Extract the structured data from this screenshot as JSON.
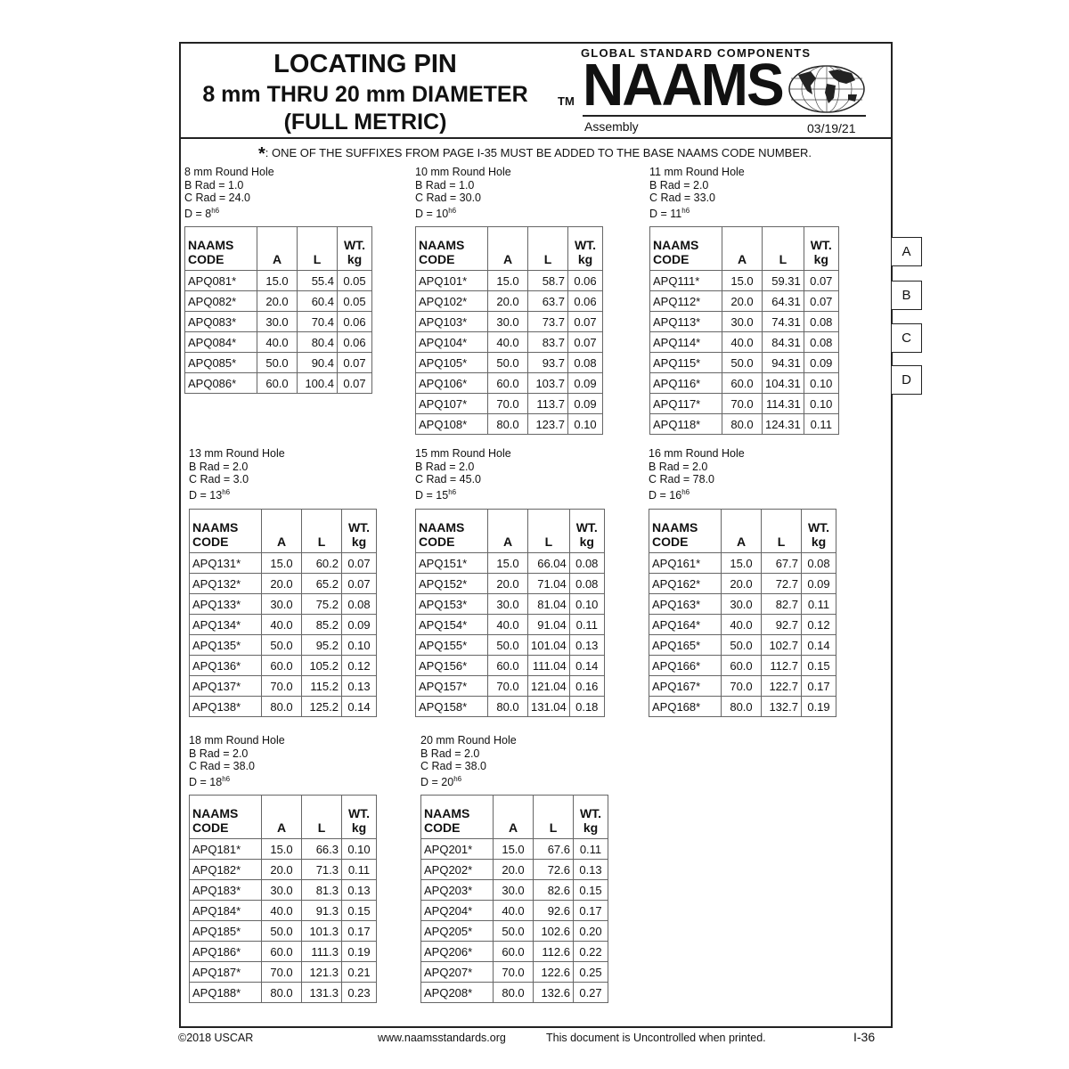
{
  "header": {
    "title_line1": "LOCATING PIN",
    "title_line2": "8 mm THRU 20 mm DIAMETER",
    "title_line3": "(FULL METRIC)",
    "logo_tagline": "GLOBAL STANDARD COMPONENTS",
    "trademark": "TM",
    "logo_text": "NAAMS",
    "logo_icon": "globe-icon",
    "section": "Assembly",
    "date": "03/19/21"
  },
  "note": {
    "symbol": "*",
    "text": ": ONE OF THE SUFFIXES FROM PAGE I-35 MUST BE ADDED TO THE BASE NAAMS CODE NUMBER."
  },
  "table_headers": {
    "code_line1": "NAAMS",
    "code_line2": "CODE",
    "a": "A",
    "l": "L",
    "wt_line1": "WT.",
    "wt_line2": "kg"
  },
  "groups": [
    {
      "title": "8 mm Round Hole",
      "b_rad": "B Rad = 1.0",
      "c_rad": "C Rad = 24.0",
      "d": "D = 8",
      "d_sup": "h6",
      "rows": [
        [
          "APQ081*",
          "15.0",
          "55.4",
          "0.05"
        ],
        [
          "APQ082*",
          "20.0",
          "60.4",
          "0.05"
        ],
        [
          "APQ083*",
          "30.0",
          "70.4",
          "0.06"
        ],
        [
          "APQ084*",
          "40.0",
          "80.4",
          "0.06"
        ],
        [
          "APQ085*",
          "50.0",
          "90.4",
          "0.07"
        ],
        [
          "APQ086*",
          "60.0",
          "100.4",
          "0.07"
        ]
      ]
    },
    {
      "title": "10 mm Round Hole",
      "b_rad": "B Rad = 1.0",
      "c_rad": "C Rad = 30.0",
      "d": "D = 10",
      "d_sup": "h6",
      "rows": [
        [
          "APQ101*",
          "15.0",
          "58.7",
          "0.06"
        ],
        [
          "APQ102*",
          "20.0",
          "63.7",
          "0.06"
        ],
        [
          "APQ103*",
          "30.0",
          "73.7",
          "0.07"
        ],
        [
          "APQ104*",
          "40.0",
          "83.7",
          "0.07"
        ],
        [
          "APQ105*",
          "50.0",
          "93.7",
          "0.08"
        ],
        [
          "APQ106*",
          "60.0",
          "103.7",
          "0.09"
        ],
        [
          "APQ107*",
          "70.0",
          "113.7",
          "0.09"
        ],
        [
          "APQ108*",
          "80.0",
          "123.7",
          "0.10"
        ]
      ]
    },
    {
      "title": "11 mm Round Hole",
      "b_rad": "B Rad = 2.0",
      "c_rad": "C Rad = 33.0",
      "d": "D = 11",
      "d_sup": "h6",
      "rows": [
        [
          "APQ111*",
          "15.0",
          "59.31",
          "0.07"
        ],
        [
          "APQ112*",
          "20.0",
          "64.31",
          "0.07"
        ],
        [
          "APQ113*",
          "30.0",
          "74.31",
          "0.08"
        ],
        [
          "APQ114*",
          "40.0",
          "84.31",
          "0.08"
        ],
        [
          "APQ115*",
          "50.0",
          "94.31",
          "0.09"
        ],
        [
          "APQ116*",
          "60.0",
          "104.31",
          "0.10"
        ],
        [
          "APQ117*",
          "70.0",
          "114.31",
          "0.10"
        ],
        [
          "APQ118*",
          "80.0",
          "124.31",
          "0.11"
        ]
      ]
    },
    {
      "title": "13 mm Round Hole",
      "b_rad": "B Rad = 2.0",
      "c_rad": "C Rad = 3.0",
      "d": "D = 13",
      "d_sup": "h6",
      "rows": [
        [
          "APQ131*",
          "15.0",
          "60.2",
          "0.07"
        ],
        [
          "APQ132*",
          "20.0",
          "65.2",
          "0.07"
        ],
        [
          "APQ133*",
          "30.0",
          "75.2",
          "0.08"
        ],
        [
          "APQ134*",
          "40.0",
          "85.2",
          "0.09"
        ],
        [
          "APQ135*",
          "50.0",
          "95.2",
          "0.10"
        ],
        [
          "APQ136*",
          "60.0",
          "105.2",
          "0.12"
        ],
        [
          "APQ137*",
          "70.0",
          "115.2",
          "0.13"
        ],
        [
          "APQ138*",
          "80.0",
          "125.2",
          "0.14"
        ]
      ]
    },
    {
      "title": "15 mm Round Hole",
      "b_rad": "B Rad = 2.0",
      "c_rad": "C Rad = 45.0",
      "d": "D = 15",
      "d_sup": "h6",
      "rows": [
        [
          "APQ151*",
          "15.0",
          "66.04",
          "0.08"
        ],
        [
          "APQ152*",
          "20.0",
          "71.04",
          "0.08"
        ],
        [
          "APQ153*",
          "30.0",
          "81.04",
          "0.10"
        ],
        [
          "APQ154*",
          "40.0",
          "91.04",
          "0.11"
        ],
        [
          "APQ155*",
          "50.0",
          "101.04",
          "0.13"
        ],
        [
          "APQ156*",
          "60.0",
          "111.04",
          "0.14"
        ],
        [
          "APQ157*",
          "70.0",
          "121.04",
          "0.16"
        ],
        [
          "APQ158*",
          "80.0",
          "131.04",
          "0.18"
        ]
      ]
    },
    {
      "title": "16 mm Round Hole",
      "b_rad": "B Rad = 2.0",
      "c_rad": "C Rad = 78.0",
      "d": "D = 16",
      "d_sup": "h6",
      "rows": [
        [
          "APQ161*",
          "15.0",
          "67.7",
          "0.08"
        ],
        [
          "APQ162*",
          "20.0",
          "72.7",
          "0.09"
        ],
        [
          "APQ163*",
          "30.0",
          "82.7",
          "0.11"
        ],
        [
          "APQ164*",
          "40.0",
          "92.7",
          "0.12"
        ],
        [
          "APQ165*",
          "50.0",
          "102.7",
          "0.14"
        ],
        [
          "APQ166*",
          "60.0",
          "112.7",
          "0.15"
        ],
        [
          "APQ167*",
          "70.0",
          "122.7",
          "0.17"
        ],
        [
          "APQ168*",
          "80.0",
          "132.7",
          "0.19"
        ]
      ]
    },
    {
      "title": "18 mm Round Hole",
      "b_rad": "B Rad = 2.0",
      "c_rad": "C Rad = 38.0",
      "d": "D = 18",
      "d_sup": "h6",
      "rows": [
        [
          "APQ181*",
          "15.0",
          "66.3",
          "0.10"
        ],
        [
          "APQ182*",
          "20.0",
          "71.3",
          "0.11"
        ],
        [
          "APQ183*",
          "30.0",
          "81.3",
          "0.13"
        ],
        [
          "APQ184*",
          "40.0",
          "91.3",
          "0.15"
        ],
        [
          "APQ185*",
          "50.0",
          "101.3",
          "0.17"
        ],
        [
          "APQ186*",
          "60.0",
          "111.3",
          "0.19"
        ],
        [
          "APQ187*",
          "70.0",
          "121.3",
          "0.21"
        ],
        [
          "APQ188*",
          "80.0",
          "131.3",
          "0.23"
        ]
      ]
    },
    {
      "title": "20 mm Round Hole",
      "b_rad": "B Rad = 2.0",
      "c_rad": "C Rad = 38.0",
      "d": "D = 20",
      "d_sup": "h6",
      "rows": [
        [
          "APQ201*",
          "15.0",
          "67.6",
          "0.11"
        ],
        [
          "APQ202*",
          "20.0",
          "72.6",
          "0.13"
        ],
        [
          "APQ203*",
          "30.0",
          "82.6",
          "0.15"
        ],
        [
          "APQ204*",
          "40.0",
          "92.6",
          "0.17"
        ],
        [
          "APQ205*",
          "50.0",
          "102.6",
          "0.20"
        ],
        [
          "APQ206*",
          "60.0",
          "112.6",
          "0.22"
        ],
        [
          "APQ207*",
          "70.0",
          "122.6",
          "0.25"
        ],
        [
          "APQ208*",
          "80.0",
          "132.6",
          "0.27"
        ]
      ]
    }
  ],
  "side_tabs": [
    "A",
    "B",
    "C",
    "D"
  ],
  "footer": {
    "copyright": "©2018 USCAR",
    "website": "www.naamsstandards.org",
    "disclaimer": "This document is Uncontrolled when printed.",
    "page": "I-36"
  }
}
